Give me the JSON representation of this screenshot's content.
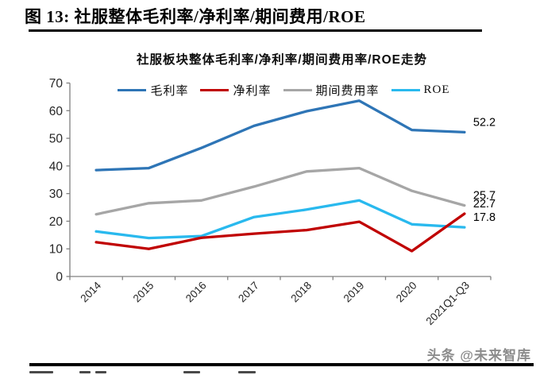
{
  "header": {
    "title": "图 13: 社服整体毛利率/净利率/期间费用/ROE"
  },
  "footer": {
    "brand": "头条 @未来智库"
  },
  "chart_data": {
    "type": "line",
    "title": "社服板块整体毛利率/净利率/期间费用率/ROE走势",
    "categories": [
      "2014",
      "2015",
      "2016",
      "2017",
      "2018",
      "2019",
      "2020",
      "2021Q1-Q3"
    ],
    "ylim": [
      0,
      70
    ],
    "yticks": [
      0,
      10,
      20,
      30,
      40,
      50,
      60,
      70
    ],
    "grid": false,
    "legend_position": "top",
    "axis_color": "#808080",
    "tick_label_color": "#262626",
    "series": [
      {
        "name": "毛利率",
        "slug": "gross-margin",
        "color": "#2E75B6",
        "values": [
          38.5,
          39.2,
          46.5,
          54.5,
          59.8,
          63.6,
          53.0,
          52.2
        ],
        "end_label": "52.2"
      },
      {
        "name": "净利率",
        "slug": "net-margin",
        "color": "#C00000",
        "values": [
          12.4,
          10.0,
          14.0,
          15.5,
          16.8,
          19.8,
          9.2,
          22.7
        ],
        "end_label": "22.7"
      },
      {
        "name": "期间费用率",
        "slug": "period-expense-ratio",
        "color": "#A6A6A6",
        "values": [
          22.5,
          26.5,
          27.5,
          32.5,
          38.0,
          39.2,
          31.0,
          25.7
        ],
        "end_label": "25.7"
      },
      {
        "name": "ROE",
        "slug": "roe",
        "color": "#29B9EE",
        "values": [
          16.3,
          13.9,
          14.6,
          21.5,
          24.2,
          27.5,
          18.9,
          17.8
        ],
        "end_label": "17.8"
      }
    ]
  }
}
